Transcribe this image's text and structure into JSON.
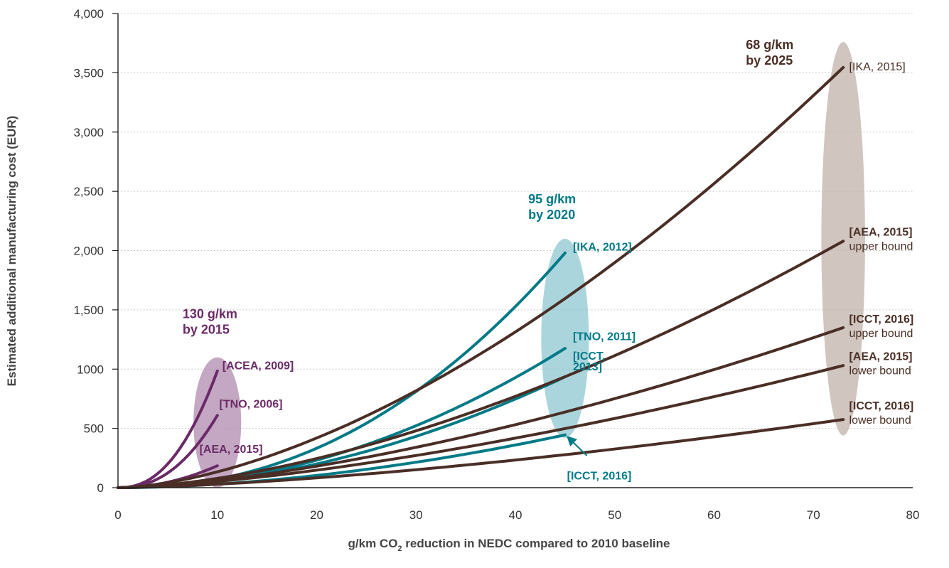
{
  "chart_data": {
    "type": "line",
    "xlabel": "g/km CO",
    "xlabel_sub": "2",
    "xlabel_rest": " reduction in NEDC compared to 2010 baseline",
    "ylabel": "Estimated additional manufacturing cost (EUR)",
    "xlim": [
      0,
      80
    ],
    "ylim": [
      0,
      4000
    ],
    "grid": true,
    "x_ticks": [
      {
        "value": 0,
        "label": "0"
      },
      {
        "value": 10,
        "label": "10"
      },
      {
        "value": 20,
        "label": "20"
      },
      {
        "value": 30,
        "label": "30"
      },
      {
        "value": 40,
        "label": "40"
      },
      {
        "value": 50,
        "label": "50"
      },
      {
        "value": 60,
        "label": "60"
      },
      {
        "value": 70,
        "label": "70"
      },
      {
        "value": 80,
        "label": "80"
      }
    ],
    "y_ticks": [
      {
        "value": 0,
        "label": "0"
      },
      {
        "value": 500,
        "label": "500"
      },
      {
        "value": 1000,
        "label": "1000"
      },
      {
        "value": 1500,
        "label": "1,500"
      },
      {
        "value": 2000,
        "label": "2,000"
      },
      {
        "value": 2500,
        "label": "2,500"
      },
      {
        "value": 3000,
        "label": "3,000"
      },
      {
        "value": 3500,
        "label": "3,500"
      },
      {
        "value": 4000,
        "label": "4,000"
      }
    ],
    "colors": {
      "purple": "#6b2a67",
      "teal": "#007a87",
      "brown": "#4a2e25",
      "axis": "#222222",
      "grid": "#bbbbbb",
      "tick": "#333333"
    },
    "groups": [
      {
        "label_lines": [
          "130 g/km",
          "by 2015"
        ],
        "color": "#6b2a67",
        "ellipse_color": "#b08aae",
        "ellipse": {
          "cx": 10,
          "cy": 550,
          "rx": 2.4,
          "ry": 550
        },
        "label_pos": {
          "x": 6.5,
          "y": 1430
        },
        "series": [
          {
            "name": "[ACEA, 2009]",
            "x_end": 10,
            "y_end": 985,
            "exp": 2.3,
            "label_x": 10.5,
            "label_y": 1000,
            "label_anchor": "start"
          },
          {
            "name": "[TNO, 2006]",
            "x_end": 10,
            "y_end": 610,
            "exp": 2.3,
            "label_x": 10.2,
            "label_y": 675,
            "label_anchor": "start"
          },
          {
            "name": "[AEA, 2015]",
            "x_end": 10,
            "y_end": 185,
            "exp": 2.0,
            "label_x": 8.2,
            "label_y": 295,
            "label_anchor": "start"
          }
        ]
      },
      {
        "label_lines": [
          "95 g/km",
          "by 2020"
        ],
        "color": "#007a87",
        "ellipse_color": "#8fc7d1",
        "ellipse": {
          "cx": 45,
          "cy": 1260,
          "rx": 2.4,
          "ry": 840
        },
        "label_pos": {
          "x": 41.3,
          "y": 2400
        },
        "series": [
          {
            "name": "[IKA, 2012]",
            "x_end": 45,
            "y_end": 1980,
            "exp": 2.2,
            "label_x": 45.8,
            "label_y": 2000,
            "label_anchor": "start"
          },
          {
            "name": "[TNO, 2011]",
            "x_end": 45,
            "y_end": 1175,
            "exp": 2.0,
            "label_x": 45.8,
            "label_y": 1245,
            "label_anchor": "start"
          },
          {
            "name": "[ICCT, 2013]",
            "x_end": 45,
            "y_end": 935,
            "exp": 1.9,
            "label_x": 45.8,
            "label_y": 1080,
            "label_anchor": "start",
            "label_lines": [
              "[ICCT,",
              "2013]"
            ]
          },
          {
            "name": "[ICCT, 2016]",
            "x_end": 45,
            "y_end": 445,
            "exp": 1.8,
            "label_x": 45.2,
            "label_y": 70,
            "label_anchor": "start",
            "arrow": true
          }
        ]
      },
      {
        "label_lines": [
          "68 g/km",
          "by 2025"
        ],
        "color": "#4a2e25",
        "ellipse_color": "#c0b1aa",
        "ellipse": {
          "cx": 73,
          "cy": 2100,
          "rx": 2.2,
          "ry": 1660
        },
        "label_pos": {
          "x": 63.2,
          "y": 3700
        },
        "series": [
          {
            "name": "[IKA, 2015]",
            "x_end": 73,
            "y_end": 3545,
            "exp": 1.65,
            "label_x": 73.6,
            "label_y": 3520,
            "label_anchor": "start",
            "bold": false
          },
          {
            "name": "[AEA, 2015]",
            "sub": "upper bound",
            "x_end": 73,
            "y_end": 2080,
            "exp": 1.65,
            "label_x": 73.6,
            "label_y": 2125,
            "label_anchor": "start"
          },
          {
            "name": "[ICCT, 2016]",
            "sub": "upper bound",
            "x_end": 73,
            "y_end": 1350,
            "exp": 1.55,
            "label_x": 73.6,
            "label_y": 1390,
            "label_anchor": "start"
          },
          {
            "name": "[AEA, 2015]",
            "sub": "lower bound",
            "x_end": 73,
            "y_end": 1030,
            "exp": 1.5,
            "label_x": 73.6,
            "label_y": 1075,
            "label_anchor": "start"
          },
          {
            "name": "[ICCT, 2016]",
            "sub": "lower bound",
            "x_end": 73,
            "y_end": 575,
            "exp": 1.5,
            "label_x": 73.6,
            "label_y": 660,
            "label_anchor": "start"
          }
        ]
      }
    ]
  }
}
